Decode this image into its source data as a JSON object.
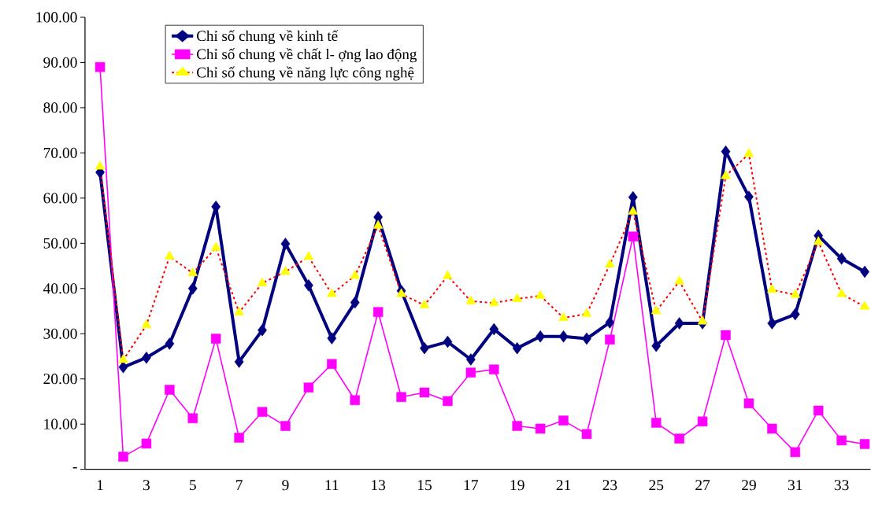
{
  "chart_data": {
    "type": "line",
    "categories": [
      "1",
      null,
      "3",
      null,
      "5",
      null,
      "7",
      null,
      "9",
      null,
      "11",
      null,
      "13",
      null,
      "15",
      null,
      "17",
      null,
      "19",
      null,
      "21",
      null,
      "23",
      null,
      "25",
      null,
      "27",
      null,
      "29",
      null,
      "31",
      null,
      "33",
      null
    ],
    "series": [
      {
        "name": "Chỉ số chung về kinh tế",
        "color": "#000080",
        "marker": "diamond",
        "line_style": "solid",
        "values": [
          65.7,
          22.6,
          24.7,
          27.8,
          40.0,
          58.1,
          23.8,
          30.8,
          49.9,
          40.7,
          29.0,
          36.9,
          55.8,
          39.5,
          26.8,
          28.2,
          24.3,
          31.0,
          26.8,
          29.4,
          29.4,
          28.9,
          32.5,
          60.2,
          27.3,
          32.3,
          32.3,
          70.3,
          60.3,
          32.3,
          34.3,
          51.7,
          46.6,
          43.7
        ]
      },
      {
        "name": "Chỉ số chung về chất l- ợng lao động",
        "color": "#ff00ff",
        "marker": "square",
        "line_style": "solid",
        "values": [
          89.0,
          2.8,
          5.7,
          17.6,
          11.3,
          28.9,
          7.0,
          12.7,
          9.6,
          18.1,
          23.3,
          15.3,
          34.8,
          16.0,
          17.0,
          15.1,
          21.4,
          22.1,
          9.6,
          9.0,
          10.8,
          7.8,
          28.7,
          51.5,
          10.3,
          6.8,
          10.6,
          29.7,
          14.6,
          9.0,
          3.8,
          13.0,
          6.4,
          5.6
        ]
      },
      {
        "name": "Chỉ số chung về năng lực công nghệ",
        "color": "#ffff00",
        "marker": "triangle",
        "line_style": "dotted",
        "values": [
          67.0,
          24.2,
          31.9,
          47.1,
          43.4,
          49.0,
          34.7,
          41.2,
          43.7,
          47.0,
          38.8,
          42.8,
          53.9,
          38.8,
          36.3,
          42.8,
          37.2,
          36.8,
          37.7,
          38.4,
          33.5,
          34.4,
          45.3,
          57.0,
          35.0,
          41.6,
          32.7,
          64.9,
          69.8,
          39.7,
          38.6,
          50.3,
          38.8,
          36.0
        ]
      }
    ],
    "ylim": [
      0,
      100
    ],
    "yticks": [
      {
        "value": 0,
        "label": "-"
      },
      {
        "value": 10,
        "label": "10.00"
      },
      {
        "value": 20,
        "label": "20.00"
      },
      {
        "value": 30,
        "label": "30.00"
      },
      {
        "value": 40,
        "label": "40.00"
      },
      {
        "value": 50,
        "label": "50.00"
      },
      {
        "value": 60,
        "label": "60.00"
      },
      {
        "value": 70,
        "label": "70.00"
      },
      {
        "value": 80,
        "label": "80.00"
      },
      {
        "value": 90,
        "label": "90.00"
      },
      {
        "value": 100,
        "label": "100.00"
      }
    ],
    "grid": false,
    "legend": "top"
  }
}
